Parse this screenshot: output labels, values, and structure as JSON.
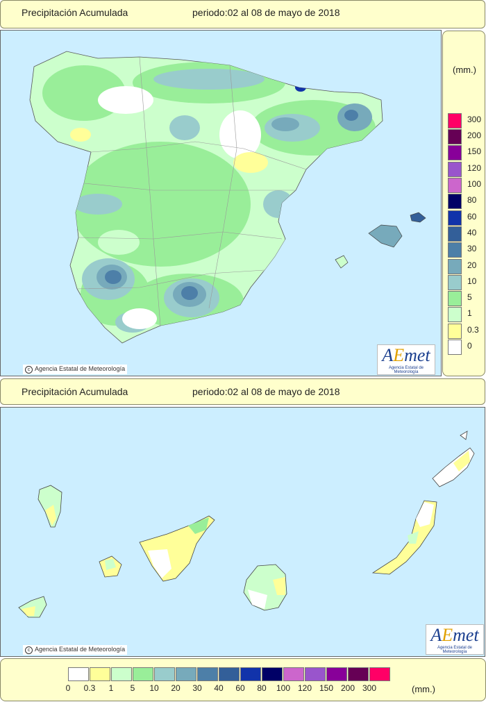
{
  "header_top": {
    "title": "Precipitación Acumulada",
    "period": "periodo:02 al 08 de mayo de 2018"
  },
  "header_bottom": {
    "title": "Precipitación Acumulada",
    "period": "periodo:02 al 08 de mayo de 2018"
  },
  "credit_text": "Agencia Estatal de Meteorología",
  "logo": {
    "text_a": "A",
    "text_e": "E",
    "text_rest": "met",
    "sub": "Agencia Estatal de Meteorología"
  },
  "legend": {
    "unit": "(mm.)",
    "classes": [
      {
        "label": "0",
        "color": "#ffffff"
      },
      {
        "label": "0.3",
        "color": "#ffff99"
      },
      {
        "label": "1",
        "color": "#ccffcc"
      },
      {
        "label": "5",
        "color": "#99ee99"
      },
      {
        "label": "10",
        "color": "#99cccc"
      },
      {
        "label": "20",
        "color": "#77aabb"
      },
      {
        "label": "30",
        "color": "#4d7fa8"
      },
      {
        "label": "40",
        "color": "#335f99"
      },
      {
        "label": "60",
        "color": "#1133aa"
      },
      {
        "label": "80",
        "color": "#000066"
      },
      {
        "label": "100",
        "color": "#cc66cc"
      },
      {
        "label": "120",
        "color": "#9955cc"
      },
      {
        "label": "150",
        "color": "#880099"
      },
      {
        "label": "200",
        "color": "#660055"
      },
      {
        "label": "300",
        "color": "#ff0066"
      }
    ]
  },
  "colors": {
    "sea": "#cceeff",
    "panel": "#ffffcc",
    "border": "#666666"
  }
}
